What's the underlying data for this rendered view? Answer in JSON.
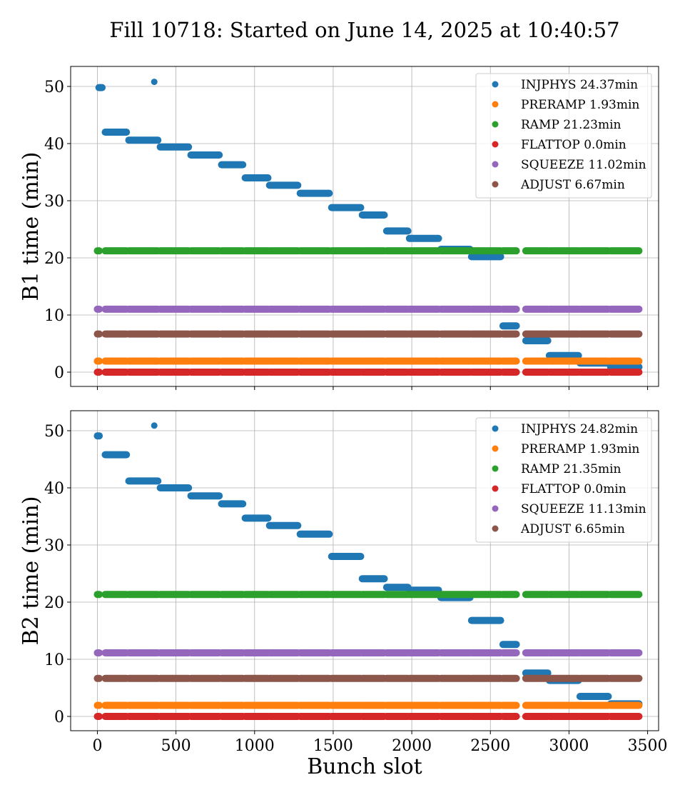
{
  "figure": {
    "title": "Fill 10718: Started on June 14, 2025 at 10:40:57"
  },
  "colors": {
    "INJPHYS": "#1f77b4",
    "PRERAMP": "#ff7f0e",
    "RAMP": "#2ca02c",
    "FLATTOP": "#d62728",
    "SQUEEZE": "#9467bd",
    "ADJUST": "#8c564b"
  },
  "chart_data": [
    {
      "type": "scatter",
      "ylabel": "B1 time (min)",
      "xlabel": "",
      "xlim": [
        -170,
        3570
      ],
      "ylim": [
        -2.5,
        53.5
      ],
      "xticks": [
        0,
        500,
        1000,
        1500,
        2000,
        2500,
        3000,
        3500
      ],
      "yticks": [
        0,
        10,
        20,
        30,
        40,
        50
      ],
      "grid": true,
      "legend_position": "top-right",
      "legend": [
        "INJPHYS 24.37min",
        "PRERAMP 1.93min",
        "RAMP 21.23min",
        "FLATTOP 0.0min",
        "SQUEEZE 11.02min",
        "ADJUST 6.67min"
      ],
      "series": [
        {
          "name": "INJPHYS 24.37min",
          "key": "INJPHYS",
          "segments": [
            {
              "x": [
                10,
                30
              ],
              "y": 49.8
            },
            {
              "x": 362,
              "y": 50.8
            },
            {
              "x": 50,
              "xe": 185,
              "y": 42.0
            },
            {
              "x": 200,
              "xe": 385,
              "y": 40.6
            },
            {
              "x": 400,
              "xe": 580,
              "y": 39.4
            },
            {
              "x": 595,
              "xe": 775,
              "y": 38.0
            },
            {
              "x": 790,
              "xe": 925,
              "y": 36.3
            },
            {
              "x": 940,
              "xe": 1085,
              "y": 34.0
            },
            {
              "x": 1095,
              "xe": 1275,
              "y": 32.7
            },
            {
              "x": 1290,
              "xe": 1475,
              "y": 31.3
            },
            {
              "x": 1490,
              "xe": 1675,
              "y": 28.8
            },
            {
              "x": 1685,
              "xe": 1825,
              "y": 27.5
            },
            {
              "x": 1840,
              "xe": 1975,
              "y": 24.7
            },
            {
              "x": 1985,
              "xe": 2170,
              "y": 23.4
            },
            {
              "x": 2185,
              "xe": 2370,
              "y": 21.5
            },
            {
              "x": 2380,
              "xe": 2565,
              "y": 20.2
            },
            {
              "x": 2580,
              "xe": 2665,
              "y": 8.1
            },
            {
              "x": 2725,
              "xe": 2865,
              "y": 5.5
            },
            {
              "x": 2875,
              "xe": 3060,
              "y": 2.9
            },
            {
              "x": 3070,
              "xe": 3250,
              "y": 1.6
            },
            {
              "x": 3265,
              "xe": 3445,
              "y": 0.9
            }
          ]
        },
        {
          "name": "PRERAMP 1.93min",
          "key": "PRERAMP",
          "y_const": 1.93
        },
        {
          "name": "RAMP 21.23min",
          "key": "RAMP",
          "y_const": 21.23
        },
        {
          "name": "FLATTOP 0.0min",
          "key": "FLATTOP",
          "y_const": 0.0
        },
        {
          "name": "SQUEEZE 11.02min",
          "key": "SQUEEZE",
          "y_const": 11.02
        },
        {
          "name": "ADJUST 6.67min",
          "key": "ADJUST",
          "y_const": 6.67
        }
      ]
    },
    {
      "type": "scatter",
      "ylabel": "B2 time (min)",
      "xlabel": "Bunch slot",
      "xlim": [
        -170,
        3570
      ],
      "ylim": [
        -2.5,
        53.5
      ],
      "xticks": [
        0,
        500,
        1000,
        1500,
        2000,
        2500,
        3000,
        3500
      ],
      "yticks": [
        0,
        10,
        20,
        30,
        40,
        50
      ],
      "grid": true,
      "legend_position": "top-right",
      "legend": [
        "INJPHYS 24.82min",
        "PRERAMP 1.93min",
        "RAMP 21.35min",
        "FLATTOP 0.0min",
        "SQUEEZE 11.13min",
        "ADJUST 6.65min"
      ],
      "series": [
        {
          "name": "INJPHYS 24.82min",
          "key": "INJPHYS",
          "segments": [
            {
              "x": [
                0,
                12
              ],
              "y": 49.1
            },
            {
              "x": 362,
              "y": 50.9
            },
            {
              "x": 50,
              "xe": 185,
              "y": 45.8
            },
            {
              "x": 200,
              "xe": 385,
              "y": 41.2
            },
            {
              "x": 400,
              "xe": 580,
              "y": 40.0
            },
            {
              "x": 595,
              "xe": 775,
              "y": 38.6
            },
            {
              "x": 790,
              "xe": 925,
              "y": 37.2
            },
            {
              "x": 940,
              "xe": 1085,
              "y": 34.7
            },
            {
              "x": 1095,
              "xe": 1275,
              "y": 33.4
            },
            {
              "x": 1290,
              "xe": 1475,
              "y": 31.9
            },
            {
              "x": 1490,
              "xe": 1675,
              "y": 28.0
            },
            {
              "x": 1685,
              "xe": 1825,
              "y": 24.1
            },
            {
              "x": 1840,
              "xe": 1975,
              "y": 22.6
            },
            {
              "x": 1985,
              "xe": 2170,
              "y": 22.1
            },
            {
              "x": 2185,
              "xe": 2370,
              "y": 20.8
            },
            {
              "x": 2380,
              "xe": 2565,
              "y": 16.8
            },
            {
              "x": 2580,
              "xe": 2665,
              "y": 12.6
            },
            {
              "x": 2725,
              "xe": 2865,
              "y": 7.6
            },
            {
              "x": 2875,
              "xe": 3060,
              "y": 6.3
            },
            {
              "x": 3070,
              "xe": 3250,
              "y": 3.5
            },
            {
              "x": 3265,
              "xe": 3445,
              "y": 2.2
            }
          ]
        },
        {
          "name": "PRERAMP 1.93min",
          "key": "PRERAMP",
          "y_const": 1.93
        },
        {
          "name": "RAMP 21.35min",
          "key": "RAMP",
          "y_const": 21.35
        },
        {
          "name": "FLATTOP 0.0min",
          "key": "FLATTOP",
          "y_const": 0.0
        },
        {
          "name": "SQUEEZE 11.13min",
          "key": "SQUEEZE",
          "y_const": 11.13
        },
        {
          "name": "ADJUST 6.65min",
          "key": "ADJUST",
          "y_const": 6.65
        }
      ]
    }
  ],
  "bunch_trains": [
    [
      0,
      12
    ],
    [
      50,
      185
    ],
    [
      200,
      385
    ],
    [
      400,
      580
    ],
    [
      595,
      775
    ],
    [
      790,
      925
    ],
    [
      940,
      1085
    ],
    [
      1095,
      1275
    ],
    [
      1290,
      1475
    ],
    [
      1490,
      1675
    ],
    [
      1685,
      1825
    ],
    [
      1840,
      1975
    ],
    [
      1985,
      2170
    ],
    [
      2185,
      2370
    ],
    [
      2380,
      2565
    ],
    [
      2580,
      2665
    ],
    [
      2725,
      2865
    ],
    [
      2875,
      3060
    ],
    [
      3070,
      3250
    ],
    [
      3265,
      3445
    ]
  ]
}
